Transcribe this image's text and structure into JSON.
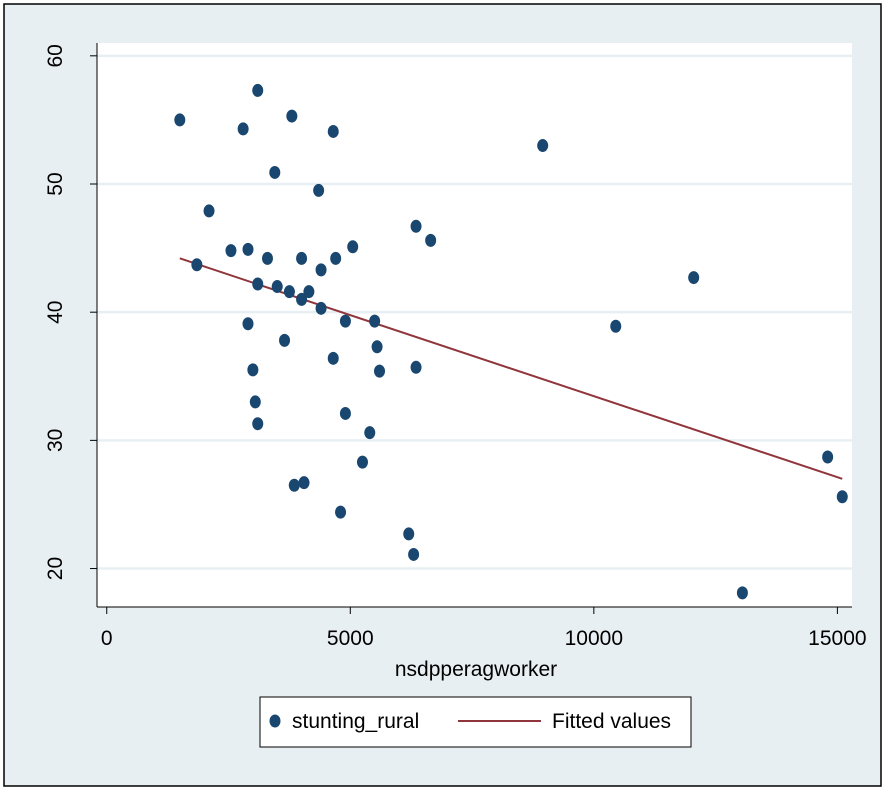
{
  "chart_data": {
    "type": "scatter",
    "xlabel": "nsdpperagworker",
    "ylabel": "",
    "xlim": [
      -200,
      15300
    ],
    "ylim": [
      17,
      61
    ],
    "x_ticks": [
      0,
      5000,
      10000,
      15000
    ],
    "y_ticks": [
      20,
      30,
      40,
      50,
      60
    ],
    "x_tick_labels": [
      "0",
      "5000",
      "10000",
      "15000"
    ],
    "y_tick_labels": [
      "20",
      "30",
      "40",
      "50",
      "60"
    ],
    "grid": "horizontal",
    "legend_position": "bottom",
    "colors": {
      "outer_background": "#e8eff2",
      "plot_background": "#ffffff",
      "grid": "#e8eff2",
      "points": "#1a476f",
      "fit_line": "#90353b"
    },
    "series": [
      {
        "name": "stunting_rural",
        "kind": "scatter",
        "points": [
          [
            1500,
            55.0
          ],
          [
            1850,
            43.7
          ],
          [
            2100,
            47.9
          ],
          [
            2550,
            44.8
          ],
          [
            2800,
            54.3
          ],
          [
            2900,
            44.9
          ],
          [
            2900,
            39.1
          ],
          [
            3000,
            35.5
          ],
          [
            3050,
            33.0
          ],
          [
            3100,
            31.3
          ],
          [
            3100,
            57.3
          ],
          [
            3100,
            42.2
          ],
          [
            3300,
            44.2
          ],
          [
            3450,
            50.9
          ],
          [
            3500,
            42.0
          ],
          [
            3650,
            37.8
          ],
          [
            3750,
            41.6
          ],
          [
            3800,
            55.3
          ],
          [
            3850,
            26.5
          ],
          [
            4000,
            44.2
          ],
          [
            4000,
            41.0
          ],
          [
            4050,
            26.7
          ],
          [
            4150,
            41.6
          ],
          [
            4350,
            49.5
          ],
          [
            4400,
            43.3
          ],
          [
            4400,
            40.3
          ],
          [
            4650,
            36.4
          ],
          [
            4650,
            54.1
          ],
          [
            4700,
            44.2
          ],
          [
            4800,
            24.4
          ],
          [
            4900,
            39.3
          ],
          [
            4900,
            32.1
          ],
          [
            5050,
            45.1
          ],
          [
            5250,
            28.3
          ],
          [
            5400,
            30.6
          ],
          [
            5500,
            39.3
          ],
          [
            5550,
            37.3
          ],
          [
            5600,
            35.4
          ],
          [
            6200,
            22.7
          ],
          [
            6300,
            21.1
          ],
          [
            6350,
            46.7
          ],
          [
            6350,
            35.7
          ],
          [
            6650,
            45.6
          ],
          [
            8950,
            53.0
          ],
          [
            10450,
            38.9
          ],
          [
            12050,
            42.7
          ],
          [
            13050,
            18.1
          ],
          [
            14800,
            28.7
          ],
          [
            15100,
            25.6
          ]
        ]
      },
      {
        "name": "Fitted values",
        "kind": "line",
        "points": [
          [
            1500,
            44.2
          ],
          [
            15100,
            27.0
          ]
        ]
      }
    ]
  }
}
